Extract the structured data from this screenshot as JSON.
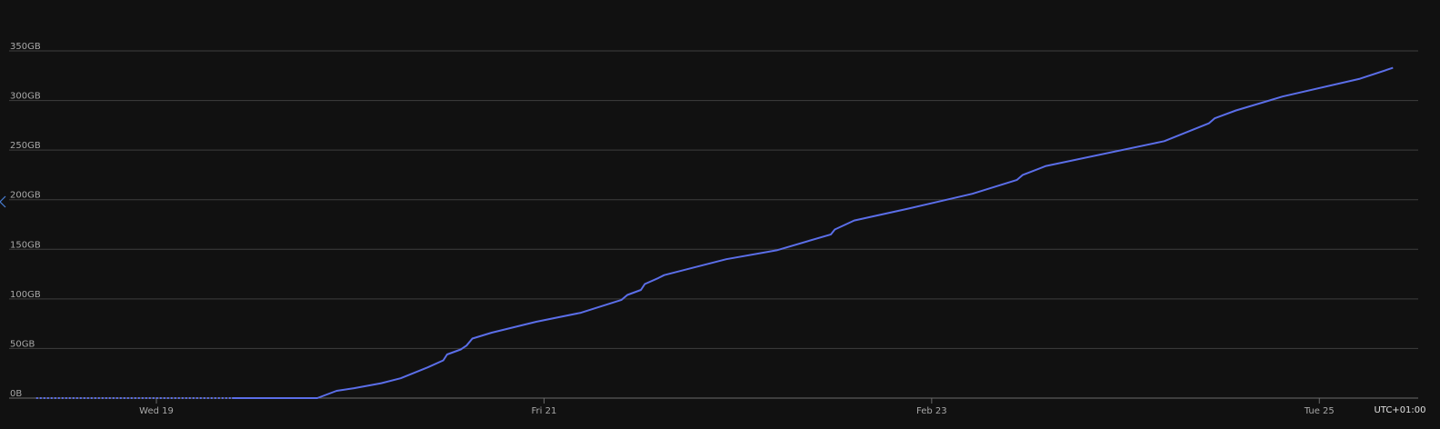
{
  "chart_data": {
    "type": "line",
    "series": [
      {
        "color": "#5b6ee8",
        "style": "dashed",
        "x": [
          18.38,
          19.39
        ],
        "values": [
          0,
          0
        ]
      },
      {
        "color": "#5b6ee8",
        "style": "solid",
        "x": [
          19.39,
          19.83,
          19.93,
          20.02,
          20.16,
          20.26,
          20.4,
          20.48,
          20.5,
          20.57,
          20.6,
          20.63,
          20.73,
          20.96,
          21.19,
          21.4,
          21.43,
          21.5,
          21.52,
          21.59,
          21.62,
          21.94,
          22.2,
          22.48,
          22.5,
          22.6,
          22.88,
          23.21,
          23.44,
          23.47,
          23.59,
          24.2,
          24.43,
          24.46,
          24.57,
          24.81,
          25.21,
          25.38
        ],
        "values": [
          0,
          0,
          7.3,
          10,
          15,
          20,
          31,
          38,
          44,
          49,
          53,
          60,
          66,
          77,
          86,
          99,
          104,
          109,
          115,
          121,
          124,
          140,
          149,
          165,
          170,
          179,
          191,
          206,
          220,
          225,
          234,
          259,
          277,
          282,
          290,
          304,
          322,
          333
        ]
      }
    ],
    "xlim": [
      18.24,
      25.51
    ],
    "xticks": [
      {
        "value": 19,
        "label": "Wed 19"
      },
      {
        "value": 21,
        "label": "Fri 21"
      },
      {
        "value": 23,
        "label": "Feb 23"
      },
      {
        "value": 25,
        "label": "Tue 25"
      }
    ],
    "ylim": [
      0,
      350
    ],
    "yticks": [
      {
        "value": 0,
        "label": "0B"
      },
      {
        "value": 50,
        "label": "50GB"
      },
      {
        "value": 100,
        "label": "100GB"
      },
      {
        "value": 150,
        "label": "150GB"
      },
      {
        "value": 200,
        "label": "200GB"
      },
      {
        "value": 250,
        "label": "250GB"
      },
      {
        "value": 300,
        "label": "300GB"
      },
      {
        "value": 350,
        "label": "350GB"
      }
    ],
    "grid": true,
    "timezone": "UTC+01:00"
  }
}
